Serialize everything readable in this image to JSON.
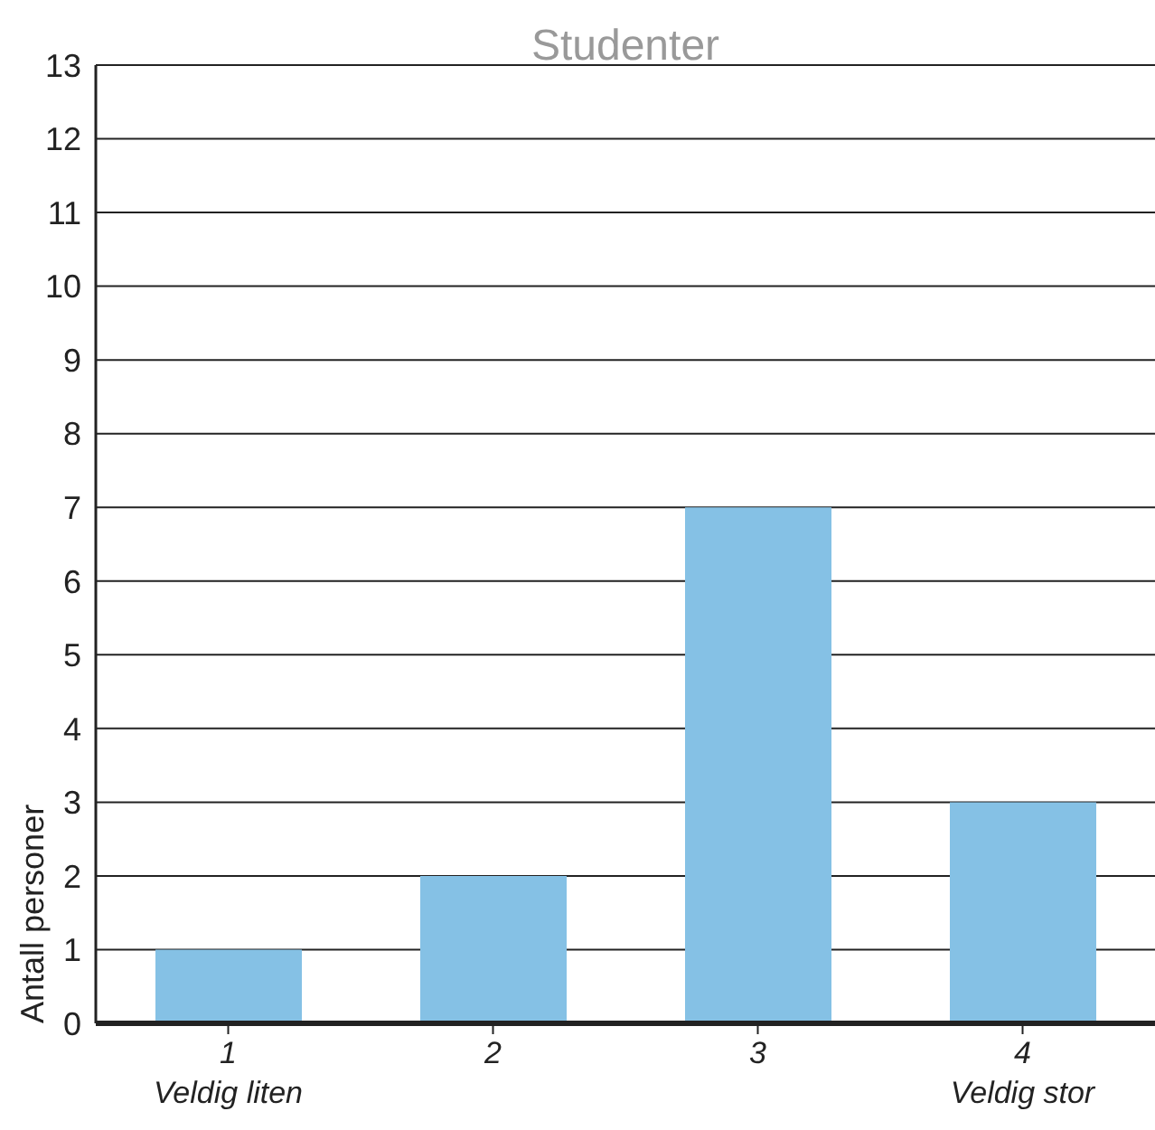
{
  "chart_data": {
    "type": "bar",
    "title": "Studenter",
    "ylabel": "Antall personer",
    "categories": [
      "1\nVeldig liten",
      "2",
      "3",
      "4\nVeldig stor"
    ],
    "values": [
      1,
      2,
      7,
      3
    ],
    "color": "#85c1e5",
    "ylim": [
      0,
      13
    ],
    "yticks": [
      0,
      1,
      2,
      3,
      4,
      5,
      6,
      7,
      8,
      9,
      10,
      11,
      12,
      13
    ],
    "grid": "y",
    "legend": false
  }
}
